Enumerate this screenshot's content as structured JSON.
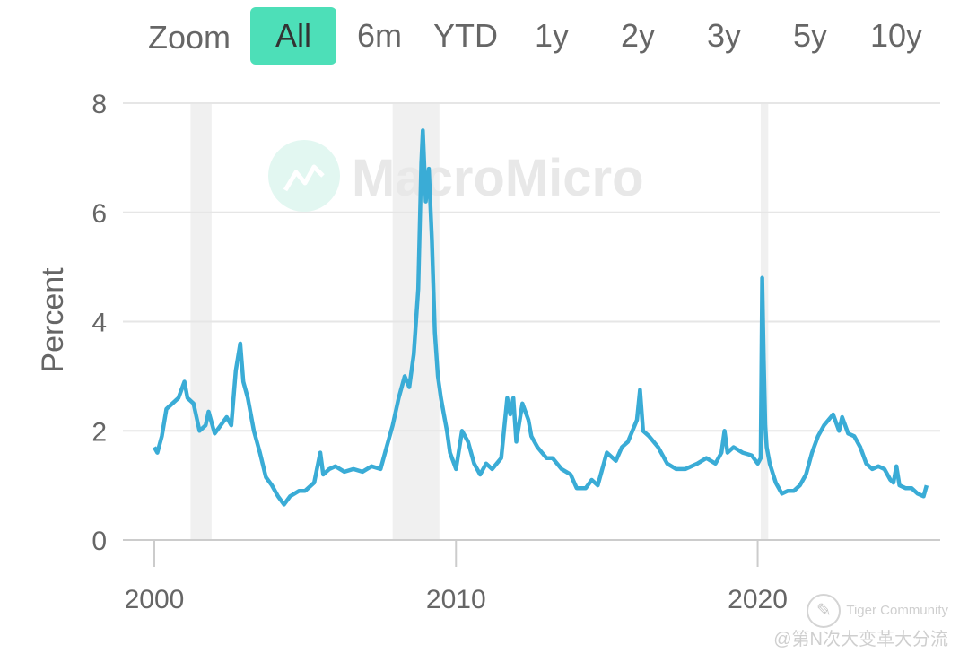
{
  "zoom": {
    "label": "Zoom",
    "buttons": [
      "All",
      "6m",
      "YTD",
      "1y",
      "2y",
      "3y",
      "5y",
      "10y"
    ],
    "selected": "All"
  },
  "watermark": {
    "text": "MacroMicro"
  },
  "footer": {
    "brand": "Tiger Community",
    "author": "@第N次大变革大分流"
  },
  "colors": {
    "line": "#3aacd6",
    "recession": "#f0f0f0",
    "active_button": "#4ddfb8",
    "grid": "#e6e6e6"
  },
  "chart_data": {
    "type": "line",
    "ylabel": "Percent",
    "xlabel": "",
    "ylim": [
      0,
      8
    ],
    "yticks": [
      0,
      2,
      4,
      6,
      8
    ],
    "xticks": [
      2000,
      2010,
      2020
    ],
    "grid": true,
    "recession_bands": [
      [
        2001.2,
        2001.9
      ],
      [
        2007.9,
        2009.45
      ],
      [
        2020.1,
        2020.35
      ]
    ],
    "series": [
      {
        "x": [
          2000.0,
          2000.1,
          2000.25,
          2000.4,
          2000.6,
          2000.8,
          2001.0,
          2001.1,
          2001.3,
          2001.5,
          2001.7,
          2001.8,
          2002.0,
          2002.2,
          2002.4,
          2002.55,
          2002.7,
          2002.85,
          2002.95,
          2003.1,
          2003.3,
          2003.5,
          2003.7,
          2003.9,
          2004.1,
          2004.3,
          2004.5,
          2004.8,
          2005.0,
          2005.3,
          2005.5,
          2005.6,
          2005.8,
          2006.0,
          2006.3,
          2006.6,
          2006.9,
          2007.2,
          2007.5,
          2007.7,
          2007.9,
          2008.1,
          2008.3,
          2008.45,
          2008.6,
          2008.75,
          2008.85,
          2008.9,
          2009.0,
          2009.1,
          2009.2,
          2009.3,
          2009.4,
          2009.5,
          2009.6,
          2009.7,
          2009.8,
          2010.0,
          2010.2,
          2010.4,
          2010.6,
          2010.8,
          2011.0,
          2011.2,
          2011.5,
          2011.7,
          2011.8,
          2011.9,
          2012.0,
          2012.2,
          2012.4,
          2012.5,
          2012.7,
          2013.0,
          2013.2,
          2013.5,
          2013.8,
          2014.0,
          2014.3,
          2014.5,
          2014.7,
          2015.0,
          2015.3,
          2015.5,
          2015.7,
          2016.0,
          2016.1,
          2016.2,
          2016.4,
          2016.7,
          2017.0,
          2017.3,
          2017.6,
          2018.0,
          2018.3,
          2018.6,
          2018.8,
          2018.9,
          2019.0,
          2019.2,
          2019.5,
          2019.8,
          2020.0,
          2020.1,
          2020.15,
          2020.2,
          2020.25,
          2020.3,
          2020.4,
          2020.6,
          2020.8,
          2021.0,
          2021.2,
          2021.4,
          2021.6,
          2021.8,
          2022.0,
          2022.2,
          2022.5,
          2022.7,
          2022.8,
          2022.9,
          2023.0,
          2023.2,
          2023.4,
          2023.6,
          2023.8,
          2024.0,
          2024.2,
          2024.4,
          2024.5,
          2024.6,
          2024.7,
          2024.9,
          2025.1,
          2025.3,
          2025.5,
          2025.6
        ],
        "y": [
          1.7,
          1.6,
          1.9,
          2.4,
          2.5,
          2.6,
          2.9,
          2.6,
          2.5,
          2.0,
          2.1,
          2.35,
          1.95,
          2.1,
          2.25,
          2.1,
          3.1,
          3.6,
          2.9,
          2.6,
          2.0,
          1.6,
          1.15,
          1.0,
          0.8,
          0.65,
          0.8,
          0.9,
          0.9,
          1.05,
          1.6,
          1.2,
          1.3,
          1.35,
          1.25,
          1.3,
          1.25,
          1.35,
          1.3,
          1.7,
          2.1,
          2.6,
          3.0,
          2.8,
          3.4,
          4.6,
          6.9,
          7.5,
          6.2,
          6.8,
          5.5,
          3.8,
          3.0,
          2.6,
          2.3,
          2.0,
          1.6,
          1.3,
          2.0,
          1.8,
          1.4,
          1.2,
          1.4,
          1.3,
          1.5,
          2.6,
          2.3,
          2.6,
          1.8,
          2.5,
          2.2,
          1.9,
          1.7,
          1.5,
          1.5,
          1.3,
          1.2,
          0.95,
          0.95,
          1.1,
          1.0,
          1.6,
          1.45,
          1.7,
          1.8,
          2.2,
          2.75,
          2.0,
          1.9,
          1.7,
          1.4,
          1.3,
          1.3,
          1.4,
          1.5,
          1.4,
          1.6,
          2.0,
          1.6,
          1.7,
          1.6,
          1.55,
          1.4,
          1.5,
          4.8,
          3.3,
          2.1,
          1.7,
          1.4,
          1.05,
          0.85,
          0.9,
          0.9,
          1.0,
          1.2,
          1.6,
          1.9,
          2.1,
          2.3,
          2.0,
          2.25,
          2.1,
          1.95,
          1.9,
          1.7,
          1.4,
          1.3,
          1.35,
          1.3,
          1.1,
          1.05,
          1.35,
          1.0,
          0.95,
          0.95,
          0.85,
          0.8,
          1.0
        ]
      }
    ]
  }
}
